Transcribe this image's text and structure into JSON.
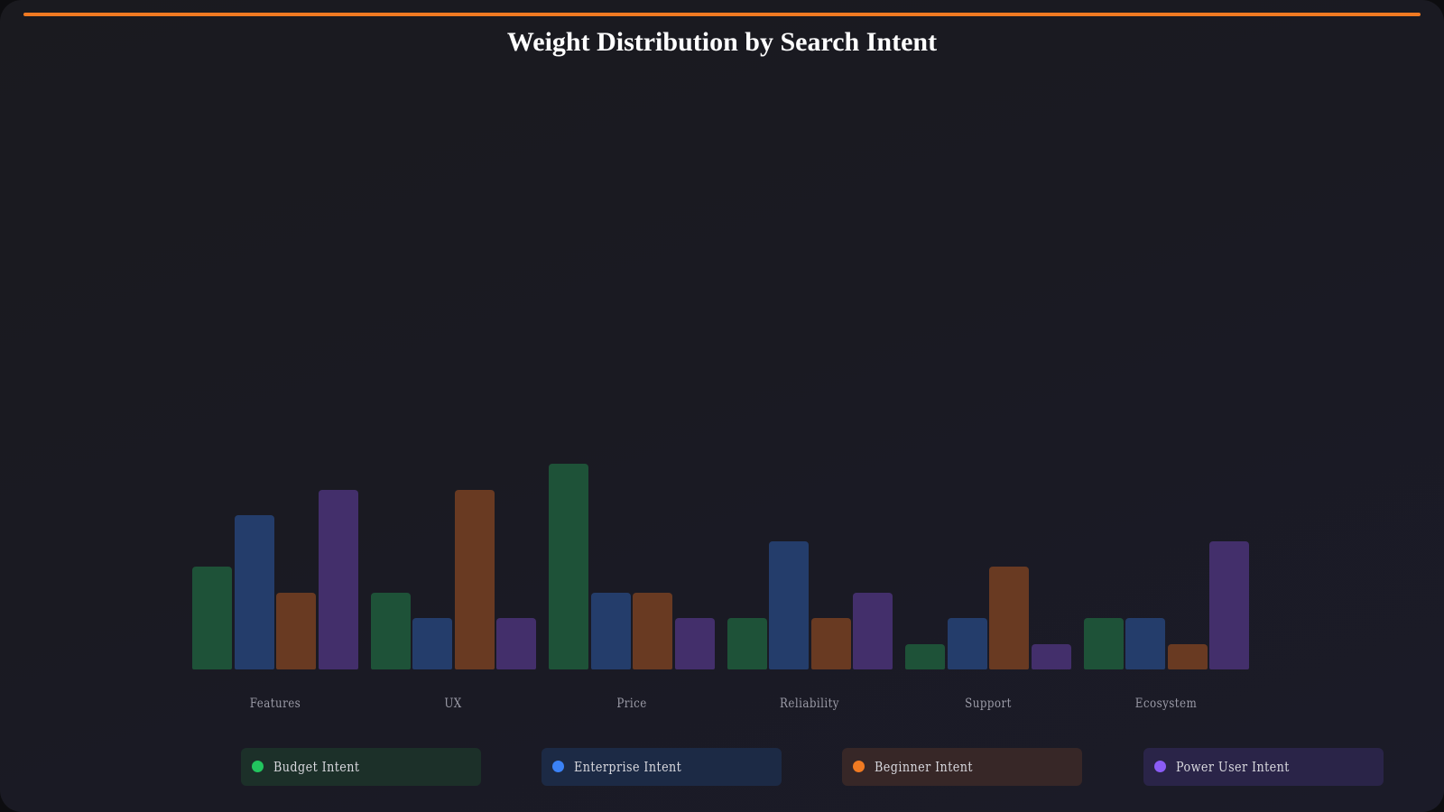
{
  "title": "Weight Distribution by Search Intent",
  "colors": {
    "accent": "#f07a22",
    "budget": "#1e5238",
    "enterprise": "#243d6b",
    "beginner": "#693a22",
    "power_user": "#432f6b"
  },
  "legend": [
    {
      "label": "Budget Intent",
      "dot": "#22c55e",
      "bg": "#1c3029"
    },
    {
      "label": "Enterprise Intent",
      "dot": "#3b82f6",
      "bg": "#1c2a45"
    },
    {
      "label": "Beginner Intent",
      "dot": "#f07a22",
      "bg": "#372727"
    },
    {
      "label": "Power User Intent",
      "dot": "#8b5cf6",
      "bg": "#2a2448"
    }
  ],
  "chart_data": {
    "type": "bar",
    "title": "Weight Distribution by Search Intent",
    "xlabel": "",
    "ylabel": "",
    "categories": [
      "Features",
      "UX",
      "Price",
      "Reliability",
      "Support",
      "Ecosystem"
    ],
    "series": [
      {
        "name": "Budget Intent",
        "values": [
          4,
          3,
          8,
          2,
          1,
          2
        ]
      },
      {
        "name": "Enterprise Intent",
        "values": [
          6,
          2,
          3,
          5,
          2,
          2
        ]
      },
      {
        "name": "Beginner Intent",
        "values": [
          3,
          7,
          3,
          2,
          4,
          1
        ]
      },
      {
        "name": "Power User Intent",
        "values": [
          7,
          2,
          2,
          3,
          1,
          5
        ]
      }
    ],
    "ylim": [
      0,
      8
    ],
    "grid": false,
    "legend_position": "bottom"
  }
}
